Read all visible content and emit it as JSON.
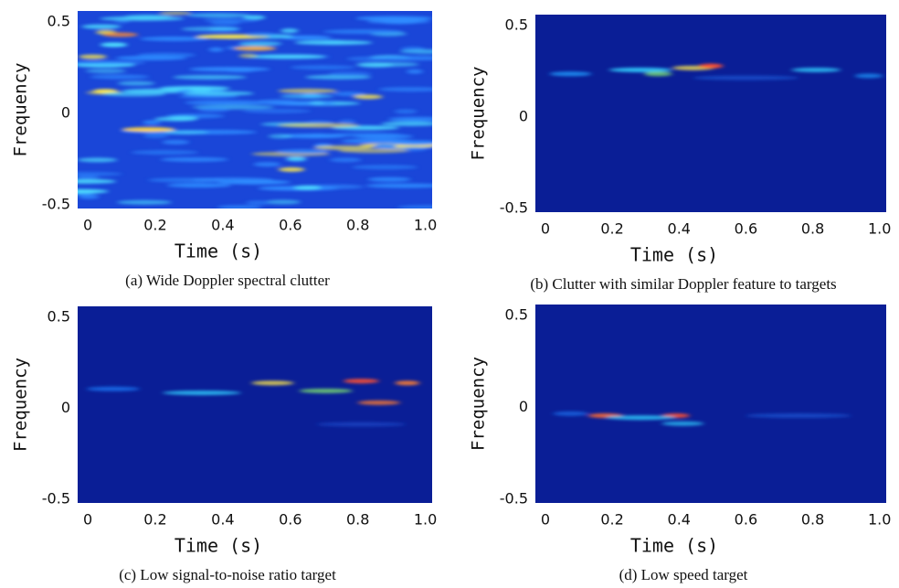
{
  "chart_data": [
    {
      "type": "spectrogram",
      "caption": "(a) Wide Doppler spectral clutter",
      "xlabel": "Time (s)",
      "ylabel": "Frequency",
      "xlim": [
        -0.03,
        1.02
      ],
      "ylim": [
        -0.52,
        0.56
      ],
      "xticks": [
        0,
        0.2,
        0.4,
        0.6,
        0.8,
        {
          "value": 1,
          "label": "1.0"
        }
      ],
      "yticks": [
        0.5,
        0,
        -0.5
      ]
    },
    {
      "type": "spectrogram",
      "caption": "(b) Clutter with similar Doppler feature to targets",
      "xlabel": "Time (s)",
      "ylabel": "Frequency",
      "xlim": [
        -0.03,
        1.02
      ],
      "ylim": [
        -0.52,
        0.56
      ],
      "xticks": [
        0,
        0.2,
        0.4,
        0.6,
        0.8,
        {
          "value": 1,
          "label": "1.0"
        }
      ],
      "yticks": [
        0.5,
        0,
        -0.5
      ]
    },
    {
      "type": "spectrogram",
      "caption": "(c) Low signal-to-noise ratio target",
      "xlabel": "Time (s)",
      "ylabel": "Frequency",
      "xlim": [
        -0.03,
        1.02
      ],
      "ylim": [
        -0.52,
        0.56
      ],
      "xticks": [
        0,
        0.2,
        0.4,
        0.6,
        0.8,
        {
          "value": 1,
          "label": "1.0"
        }
      ],
      "yticks": [
        0.5,
        0,
        -0.5
      ]
    },
    {
      "type": "spectrogram",
      "caption": "(d) Low speed target",
      "xlabel": "Time (s)",
      "ylabel": "Frequency",
      "xlim": [
        -0.03,
        1.02
      ],
      "ylim": [
        -0.52,
        0.56
      ],
      "xticks": [
        0,
        0.2,
        0.4,
        0.6,
        0.8,
        {
          "value": 1,
          "label": "1.0"
        }
      ],
      "yticks": [
        0.5,
        0,
        -0.5
      ]
    }
  ]
}
